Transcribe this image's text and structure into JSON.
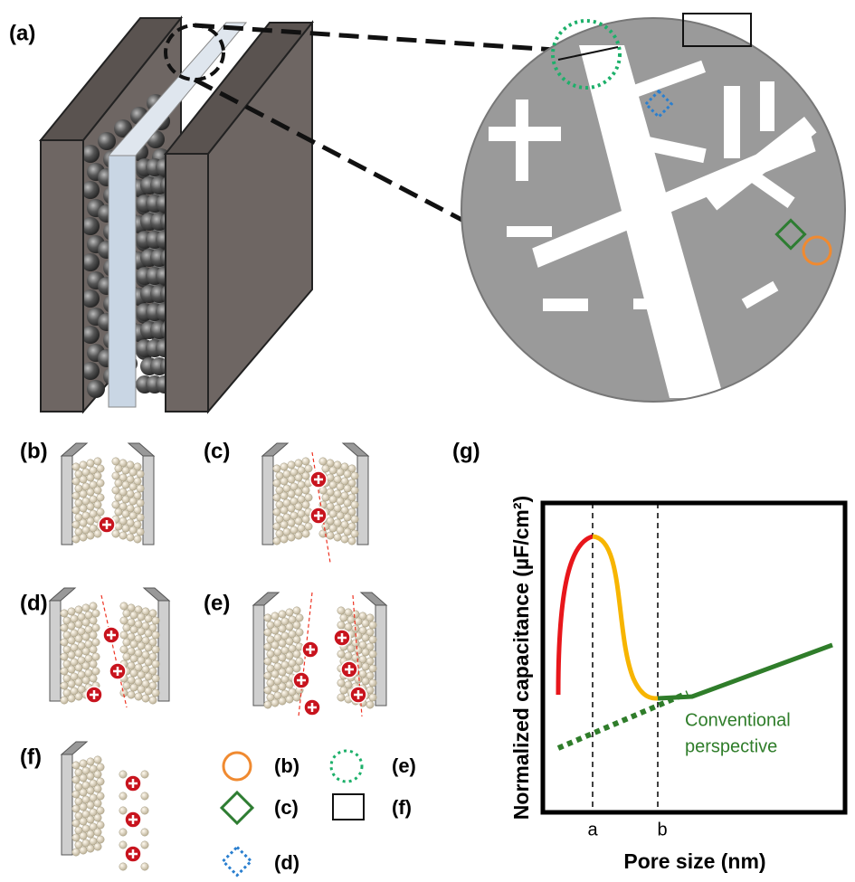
{
  "panel_labels": [
    "(a)",
    "(b)",
    "(c)",
    "(d)",
    "(e)",
    "(f)",
    "(g)"
  ],
  "legend_labels": [
    "(b)",
    "(c)",
    "(d)",
    "(e)",
    "(f)"
  ],
  "graph": {
    "y_label": "Normalized capacitance (µF/cm²)",
    "x_label": "Pore size (nm)",
    "x_markers": [
      "a",
      "b"
    ],
    "annotation": [
      "Conventional",
      "perspective"
    ]
  }
}
